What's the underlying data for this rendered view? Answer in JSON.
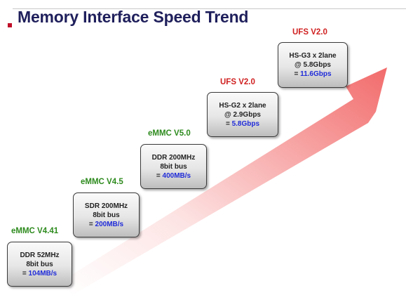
{
  "title": "Memory Interface Speed Trend",
  "colors": {
    "title": "#1f1f5c",
    "bullet": "#c0102a",
    "emmc_label": "#2e8b1e",
    "ufs_label": "#d02020",
    "speed": "#1f2bd8",
    "arrow_start": "#ffffff",
    "arrow_end": "#f26b6b"
  },
  "stages": [
    {
      "standard": "eMMC V4.41",
      "family": "emmc",
      "line1": "DDR 52MHz",
      "line2": "8bit bus",
      "prefix": "= ",
      "speed": "104MB/s"
    },
    {
      "standard": "eMMC V4.5",
      "family": "emmc",
      "line1": "SDR 200MHz",
      "line2": "8bit bus",
      "prefix": "= ",
      "speed": "200MB/s"
    },
    {
      "standard": "eMMC V5.0",
      "family": "emmc",
      "line1": "DDR 200MHz",
      "line2": "8bit bus",
      "prefix": "= ",
      "speed": "400MB/s"
    },
    {
      "standard": "UFS V2.0",
      "family": "ufs",
      "line1": "HS-G2 x 2lane",
      "line2": "@ 2.9Gbps",
      "prefix": "= ",
      "speed": "5.8Gbps"
    },
    {
      "standard": "UFS V2.0",
      "family": "ufs",
      "line1": "HS-G3 x 2lane",
      "line2": "@ 5.8Gbps",
      "prefix": "= ",
      "speed": "11.6Gbps"
    }
  ]
}
